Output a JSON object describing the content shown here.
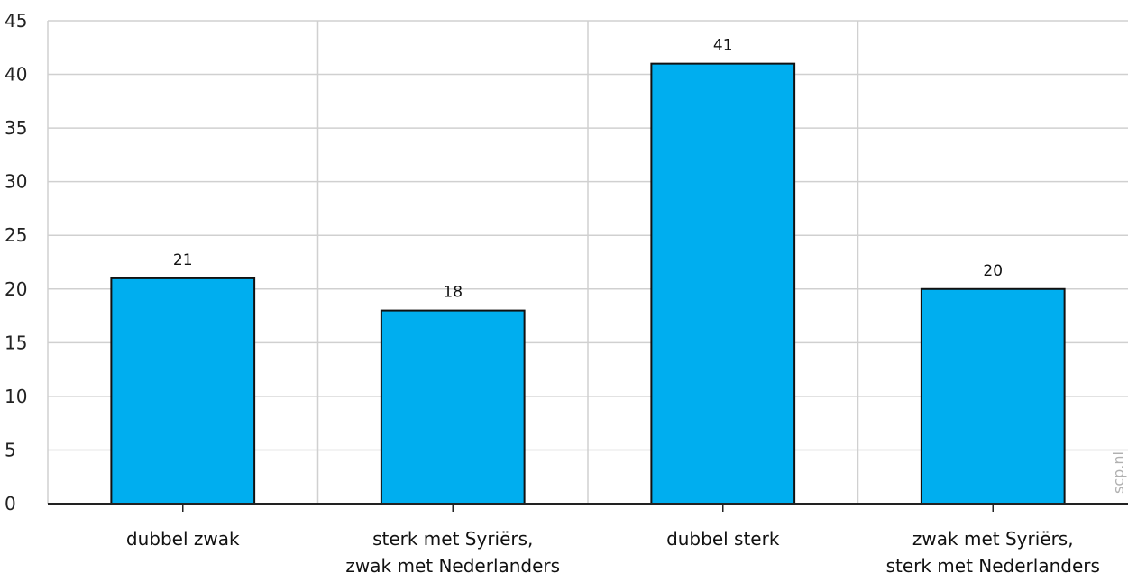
{
  "chart_data": {
    "type": "bar",
    "categories": [
      [
        "dubbel zwak"
      ],
      [
        "sterk met Syriërs,",
        "zwak met Nederlanders"
      ],
      [
        "dubbel sterk"
      ],
      [
        "zwak met Syriërs,",
        "sterk met Nederlanders"
      ]
    ],
    "values": [
      21,
      18,
      41,
      20
    ],
    "data_labels": [
      "21",
      "18",
      "41",
      "20"
    ],
    "title": "",
    "xlabel": "",
    "ylabel": "",
    "ylim": [
      0,
      45
    ],
    "yticks": [
      0,
      5,
      10,
      15,
      20,
      25,
      30,
      35,
      40,
      45
    ],
    "grid": true,
    "colors": {
      "bar": "#00aeef",
      "bar_stroke": "#111111",
      "grid": "#d0d0d0",
      "axis": "#222222"
    }
  },
  "source_note": "scp.nl"
}
